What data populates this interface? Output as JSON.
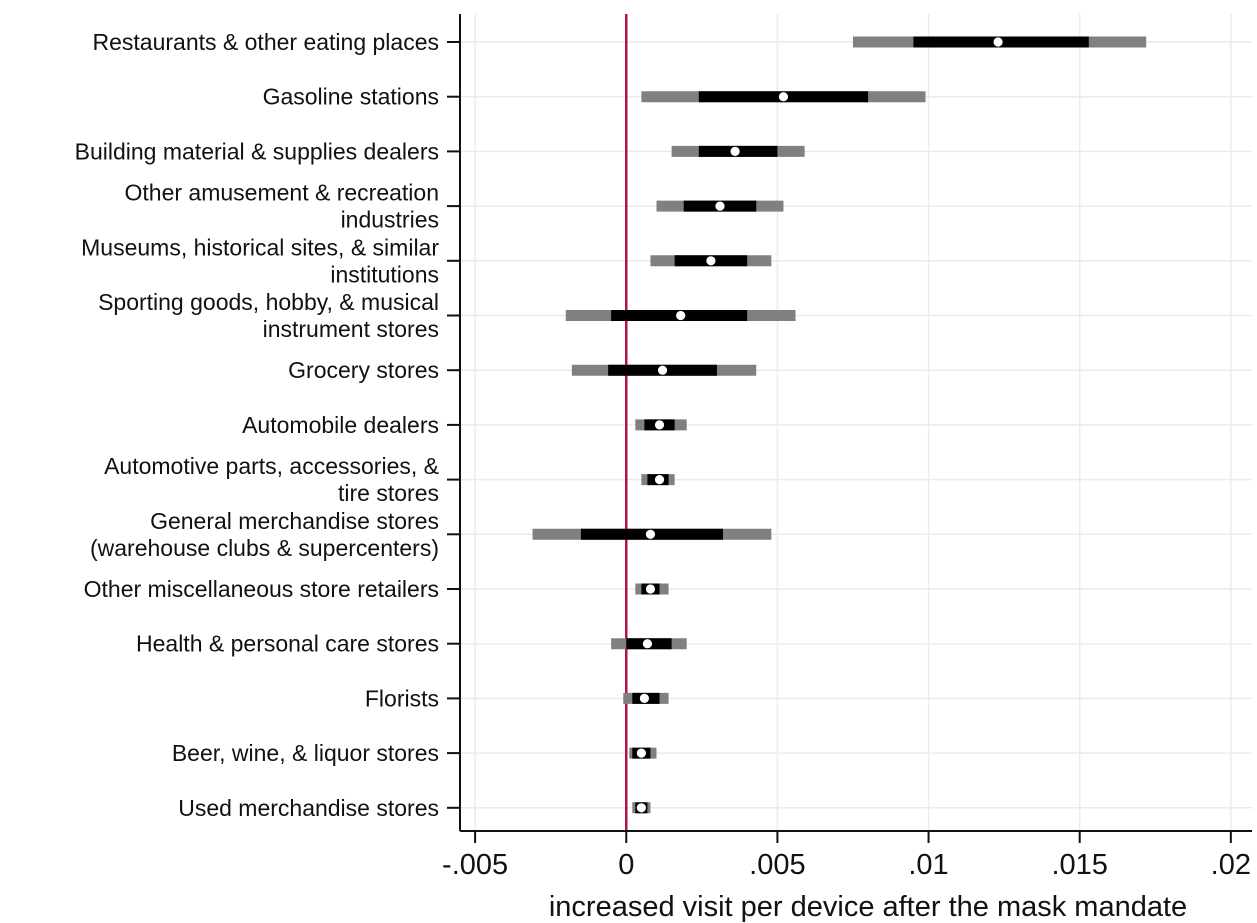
{
  "chart_data": {
    "type": "coefficient-plot",
    "xlabel": "increased visit per device after the mask mandate",
    "xlim": [
      -0.0055,
      0.0207
    ],
    "x_ticks": [
      -0.005,
      0,
      0.005,
      0.01,
      0.015,
      0.02
    ],
    "x_tick_labels": [
      "-.005",
      "0",
      ".005",
      ".01",
      ".015",
      ".02"
    ],
    "reference_line_x": 0,
    "grid": true,
    "colors": {
      "ci_outer": "#808080",
      "ci_inner": "#000000",
      "point": "#ffffff",
      "reference_line": "#b5123f",
      "grid": "#e6ecf2"
    },
    "categories": [
      {
        "label_lines": [
          "Restaurants & other eating places"
        ],
        "estimate": 0.0123,
        "ci_inner": [
          0.0095,
          0.0153
        ],
        "ci_outer": [
          0.0075,
          0.0172
        ]
      },
      {
        "label_lines": [
          "Gasoline stations"
        ],
        "estimate": 0.0052,
        "ci_inner": [
          0.0024,
          0.008
        ],
        "ci_outer": [
          0.0005,
          0.0099
        ]
      },
      {
        "label_lines": [
          "Building material & supplies dealers"
        ],
        "estimate": 0.0036,
        "ci_inner": [
          0.0024,
          0.005
        ],
        "ci_outer": [
          0.0015,
          0.0059
        ]
      },
      {
        "label_lines": [
          "Other amusement & recreation",
          "industries"
        ],
        "estimate": 0.0031,
        "ci_inner": [
          0.0019,
          0.0043
        ],
        "ci_outer": [
          0.001,
          0.0052
        ]
      },
      {
        "label_lines": [
          "Museums, historical sites, & similar",
          "institutions"
        ],
        "estimate": 0.0028,
        "ci_inner": [
          0.0016,
          0.004
        ],
        "ci_outer": [
          0.0008,
          0.0048
        ]
      },
      {
        "label_lines": [
          "Sporting goods, hobby, & musical",
          "instrument stores"
        ],
        "estimate": 0.0018,
        "ci_inner": [
          -0.0005,
          0.004
        ],
        "ci_outer": [
          -0.002,
          0.0056
        ]
      },
      {
        "label_lines": [
          "Grocery stores"
        ],
        "estimate": 0.0012,
        "ci_inner": [
          -0.0006,
          0.003
        ],
        "ci_outer": [
          -0.0018,
          0.0043
        ]
      },
      {
        "label_lines": [
          "Automobile dealers"
        ],
        "estimate": 0.0011,
        "ci_inner": [
          0.0006,
          0.0016
        ],
        "ci_outer": [
          0.0003,
          0.002
        ]
      },
      {
        "label_lines": [
          "Automotive parts, accessories, &",
          "tire stores"
        ],
        "estimate": 0.0011,
        "ci_inner": [
          0.0007,
          0.0014
        ],
        "ci_outer": [
          0.0005,
          0.0016
        ]
      },
      {
        "label_lines": [
          "General merchandise stores",
          "(warehouse clubs & supercenters)"
        ],
        "estimate": 0.0008,
        "ci_inner": [
          -0.0015,
          0.0032
        ],
        "ci_outer": [
          -0.0031,
          0.0048
        ]
      },
      {
        "label_lines": [
          "Other miscellaneous store retailers"
        ],
        "estimate": 0.0008,
        "ci_inner": [
          0.0005,
          0.0011
        ],
        "ci_outer": [
          0.0003,
          0.0014
        ]
      },
      {
        "label_lines": [
          "Health & personal care stores"
        ],
        "estimate": 0.0007,
        "ci_inner": [
          0.0,
          0.0015
        ],
        "ci_outer": [
          -0.0005,
          0.002
        ]
      },
      {
        "label_lines": [
          "Florists"
        ],
        "estimate": 0.0006,
        "ci_inner": [
          0.0002,
          0.0011
        ],
        "ci_outer": [
          -0.0001,
          0.0014
        ]
      },
      {
        "label_lines": [
          "Beer, wine, & liquor stores"
        ],
        "estimate": 0.0005,
        "ci_inner": [
          0.0002,
          0.0008
        ],
        "ci_outer": [
          0.0001,
          0.001
        ]
      },
      {
        "label_lines": [
          "Used merchandise stores"
        ],
        "estimate": 0.0005,
        "ci_inner": [
          0.0003,
          0.0007
        ],
        "ci_outer": [
          0.0002,
          0.0008
        ]
      }
    ]
  }
}
